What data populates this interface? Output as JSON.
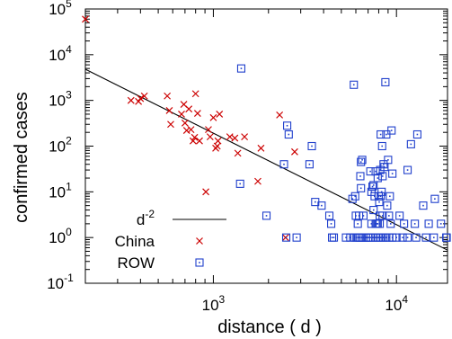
{
  "chart_data": {
    "type": "scatter",
    "xlabel": "distance ( d )",
    "ylabel": "confirmed cases",
    "x_scale": "log",
    "y_scale": "log",
    "xlim": [
      200,
      19000
    ],
    "ylim": [
      0.1,
      100000
    ],
    "x_ticks": [
      {
        "value": 1000,
        "base": "10",
        "exp": "3"
      },
      {
        "value": 10000,
        "base": "10",
        "exp": "4"
      }
    ],
    "y_ticks": [
      {
        "value": 0.1,
        "base": "10",
        "exp": "-1"
      },
      {
        "value": 1,
        "base": "10",
        "exp": "0"
      },
      {
        "value": 10,
        "base": "10",
        "exp": "1"
      },
      {
        "value": 100,
        "base": "10",
        "exp": "2"
      },
      {
        "value": 1000,
        "base": "10",
        "exp": "3"
      },
      {
        "value": 10000,
        "base": "10",
        "exp": "4"
      },
      {
        "value": 100000,
        "base": "10",
        "exp": "5"
      }
    ],
    "legend_position": "bottom-left",
    "series": [
      {
        "name": "d",
        "name_sup": "-2",
        "kind": "line",
        "color": "#000000",
        "x": [
          200,
          19000
        ],
        "y": [
          4800,
          0.53
        ]
      },
      {
        "name": "China",
        "kind": "scatter",
        "marker": "x",
        "color": "#cc0000",
        "points": [
          [
            200,
            60000
          ],
          [
            355,
            1000
          ],
          [
            390,
            950
          ],
          [
            400,
            1100
          ],
          [
            420,
            1250
          ],
          [
            560,
            1250
          ],
          [
            575,
            600
          ],
          [
            585,
            300
          ],
          [
            670,
            500
          ],
          [
            690,
            820
          ],
          [
            700,
            320
          ],
          [
            715,
            220
          ],
          [
            735,
            650
          ],
          [
            755,
            230
          ],
          [
            775,
            130
          ],
          [
            790,
            155
          ],
          [
            800,
            1400
          ],
          [
            820,
            520
          ],
          [
            840,
            130
          ],
          [
            910,
            10
          ],
          [
            940,
            230
          ],
          [
            960,
            160
          ],
          [
            1000,
            420
          ],
          [
            1030,
            90
          ],
          [
            1050,
            100
          ],
          [
            1060,
            130
          ],
          [
            1080,
            500
          ],
          [
            1230,
            160
          ],
          [
            1310,
            150
          ],
          [
            1360,
            70
          ],
          [
            1480,
            160
          ],
          [
            1750,
            17
          ],
          [
            1820,
            90
          ],
          [
            2300,
            480
          ],
          [
            2480,
            1
          ],
          [
            2780,
            75
          ]
        ]
      },
      {
        "name": "ROW",
        "kind": "scatter",
        "marker": "square-dot",
        "color": "#1f3fcc",
        "points": [
          [
            1420,
            5000
          ],
          [
            1400,
            15
          ],
          [
            1950,
            3
          ],
          [
            2430,
            40
          ],
          [
            2500,
            1
          ],
          [
            2530,
            280
          ],
          [
            2580,
            180
          ],
          [
            2850,
            1
          ],
          [
            3350,
            40
          ],
          [
            3450,
            100
          ],
          [
            3600,
            6
          ],
          [
            3900,
            5
          ],
          [
            4300,
            3
          ],
          [
            4400,
            2
          ],
          [
            4450,
            1
          ],
          [
            4550,
            1
          ],
          [
            5300,
            1
          ],
          [
            5600,
            1
          ],
          [
            5900,
            1
          ],
          [
            6050,
            1
          ],
          [
            6200,
            1
          ],
          [
            6300,
            1
          ],
          [
            6450,
            1
          ],
          [
            6600,
            1
          ],
          [
            6800,
            1
          ],
          [
            7000,
            1
          ],
          [
            7200,
            1
          ],
          [
            7450,
            1
          ],
          [
            7700,
            1
          ],
          [
            7950,
            1
          ],
          [
            8200,
            1
          ],
          [
            8500,
            1
          ],
          [
            8800,
            1
          ],
          [
            9100,
            1
          ],
          [
            9500,
            1
          ],
          [
            10000,
            1
          ],
          [
            10800,
            1
          ],
          [
            11500,
            1
          ],
          [
            12800,
            1
          ],
          [
            14500,
            1
          ],
          [
            16000,
            1
          ],
          [
            18800,
            1
          ],
          [
            5850,
            2200
          ],
          [
            6000,
            3
          ],
          [
            6150,
            2
          ],
          [
            6250,
            3
          ],
          [
            6350,
            22
          ],
          [
            6400,
            45
          ],
          [
            6500,
            50
          ],
          [
            6600,
            3
          ],
          [
            6800,
            1
          ],
          [
            5750,
            7
          ],
          [
            5950,
            8
          ],
          [
            6400,
            12
          ],
          [
            7200,
            28
          ],
          [
            7300,
            10
          ],
          [
            7400,
            13
          ],
          [
            7500,
            14
          ],
          [
            7600,
            8
          ],
          [
            7700,
            28
          ],
          [
            7800,
            2
          ],
          [
            7900,
            20
          ],
          [
            8000,
            8
          ],
          [
            8050,
            6
          ],
          [
            8100,
            3
          ],
          [
            8150,
            30
          ],
          [
            8200,
            8
          ],
          [
            8300,
            10
          ],
          [
            8350,
            100
          ],
          [
            8400,
            22
          ],
          [
            8500,
            40
          ],
          [
            8600,
            35
          ],
          [
            8700,
            2500
          ],
          [
            8800,
            180
          ],
          [
            8900,
            5
          ],
          [
            9000,
            50
          ],
          [
            9100,
            3
          ],
          [
            9200,
            8
          ],
          [
            9300,
            2
          ],
          [
            9400,
            220
          ],
          [
            7300,
            2
          ],
          [
            7500,
            4
          ],
          [
            7700,
            2
          ],
          [
            7900,
            2
          ],
          [
            8100,
            2
          ],
          [
            8400,
            3
          ],
          [
            8200,
            180
          ],
          [
            9500,
            25
          ],
          [
            10400,
            3
          ],
          [
            11000,
            2
          ],
          [
            11500,
            30
          ],
          [
            12000,
            110
          ],
          [
            12600,
            2
          ],
          [
            13000,
            180
          ],
          [
            14000,
            5
          ],
          [
            15000,
            2
          ],
          [
            16200,
            7
          ],
          [
            17500,
            2
          ],
          [
            18700,
            1
          ]
        ]
      }
    ]
  }
}
